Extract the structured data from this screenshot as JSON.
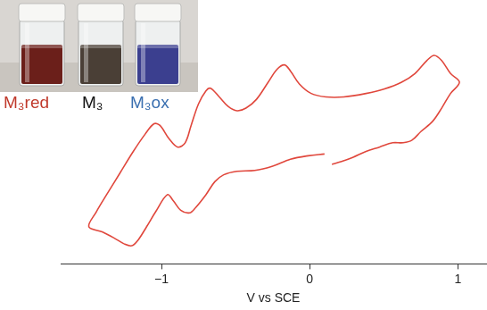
{
  "chart_data": {
    "type": "line",
    "x_label": "V vs SCE",
    "x": [
      0.1,
      -0.01,
      -0.13,
      -0.25,
      -0.37,
      -0.49,
      -0.58,
      -0.64,
      -0.7,
      -0.77,
      -0.81,
      -0.87,
      -0.92,
      -0.96,
      -1.04,
      -1.1,
      -1.16,
      -1.2,
      -1.25,
      -1.32,
      -1.4,
      -1.49,
      -1.44,
      -1.37,
      -1.28,
      -1.19,
      -1.11,
      -1.05,
      -1.01,
      -0.95,
      -0.89,
      -0.84,
      -0.8,
      -0.75,
      -0.7,
      -0.67,
      -0.61,
      -0.55,
      -0.49,
      -0.43,
      -0.36,
      -0.28,
      -0.22,
      -0.17,
      -0.13,
      -0.07,
      0.01,
      0.11,
      0.23,
      0.38,
      0.5,
      0.62,
      0.71,
      0.79,
      0.84,
      0.89,
      0.95,
      1.01,
      0.95,
      0.89,
      0.83,
      0.75,
      0.69,
      0.63,
      0.56,
      0.47,
      0.38,
      0.29,
      0.21,
      0.15
    ],
    "values": [
      127,
      125,
      121,
      113,
      108,
      107,
      103,
      95,
      80,
      65,
      59,
      62,
      73,
      80,
      60,
      43,
      27,
      21,
      23,
      30,
      37,
      43,
      60,
      80,
      105,
      130,
      150,
      162,
      160,
      145,
      135,
      140,
      160,
      185,
      200,
      203,
      193,
      182,
      177,
      180,
      190,
      210,
      225,
      230,
      223,
      208,
      197,
      193,
      193,
      197,
      202,
      210,
      220,
      235,
      241,
      235,
      220,
      210,
      197,
      180,
      165,
      153,
      143,
      140,
      140,
      135,
      130,
      123,
      118,
      115
    ],
    "color": "#e0473c",
    "marker": "none",
    "line_style": "solid",
    "xlim": [
      -1.68,
      1.19
    ],
    "xticks": [
      {
        "value": -1,
        "label": "−1"
      },
      0,
      1
    ],
    "ylim": [
      0,
      305
    ],
    "grid": false,
    "tick_labels": "x",
    "annotations": [
      {
        "text": "M₃red",
        "color": "#c0392b"
      },
      {
        "text": "M₃",
        "color": "#111111"
      },
      {
        "text": "M₃ox",
        "color": "#3a6fb0"
      }
    ]
  }
}
